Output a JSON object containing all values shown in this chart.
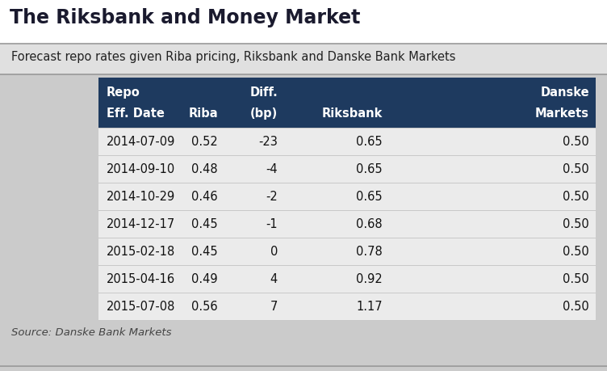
{
  "title": "The Riksbank and Money Market",
  "subtitle": "Forecast repo rates given Riba pricing, Riksbank and Danske Bank Markets",
  "source": "Source: Danske Bank Markets",
  "header_bg": "#1e3a5f",
  "header_text": "#ffffff",
  "outer_bg": "#cbcbcb",
  "subtitle_bg": "#d8d8d8",
  "table_bg": "#ebebeb",
  "col_headers_line1": [
    "Repo",
    "",
    "Diff.",
    "",
    "Danske"
  ],
  "col_headers_line2": [
    "Eff. Date",
    "Riba",
    "(bp)",
    "Riksbank",
    "Markets"
  ],
  "rows": [
    [
      "2014-07-09",
      "0.52",
      "-23",
      "0.65",
      "0.50"
    ],
    [
      "2014-09-10",
      "0.48",
      "-4",
      "0.65",
      "0.50"
    ],
    [
      "2014-10-29",
      "0.46",
      "-2",
      "0.65",
      "0.50"
    ],
    [
      "2014-12-17",
      "0.45",
      "-1",
      "0.68",
      "0.50"
    ],
    [
      "2015-02-18",
      "0.45",
      "0",
      "0.78",
      "0.50"
    ],
    [
      "2015-04-16",
      "0.49",
      "4",
      "0.92",
      "0.50"
    ],
    [
      "2015-07-08",
      "0.56",
      "7",
      "1.17",
      "0.50"
    ]
  ],
  "col_aligns": [
    "left",
    "right",
    "right",
    "right",
    "right"
  ],
  "figsize": [
    7.52,
    4.6
  ],
  "dpi": 100,
  "title_fontsize": 17,
  "subtitle_fontsize": 10.5,
  "header_fontsize": 10.5,
  "body_fontsize": 10.5,
  "source_fontsize": 9.5
}
